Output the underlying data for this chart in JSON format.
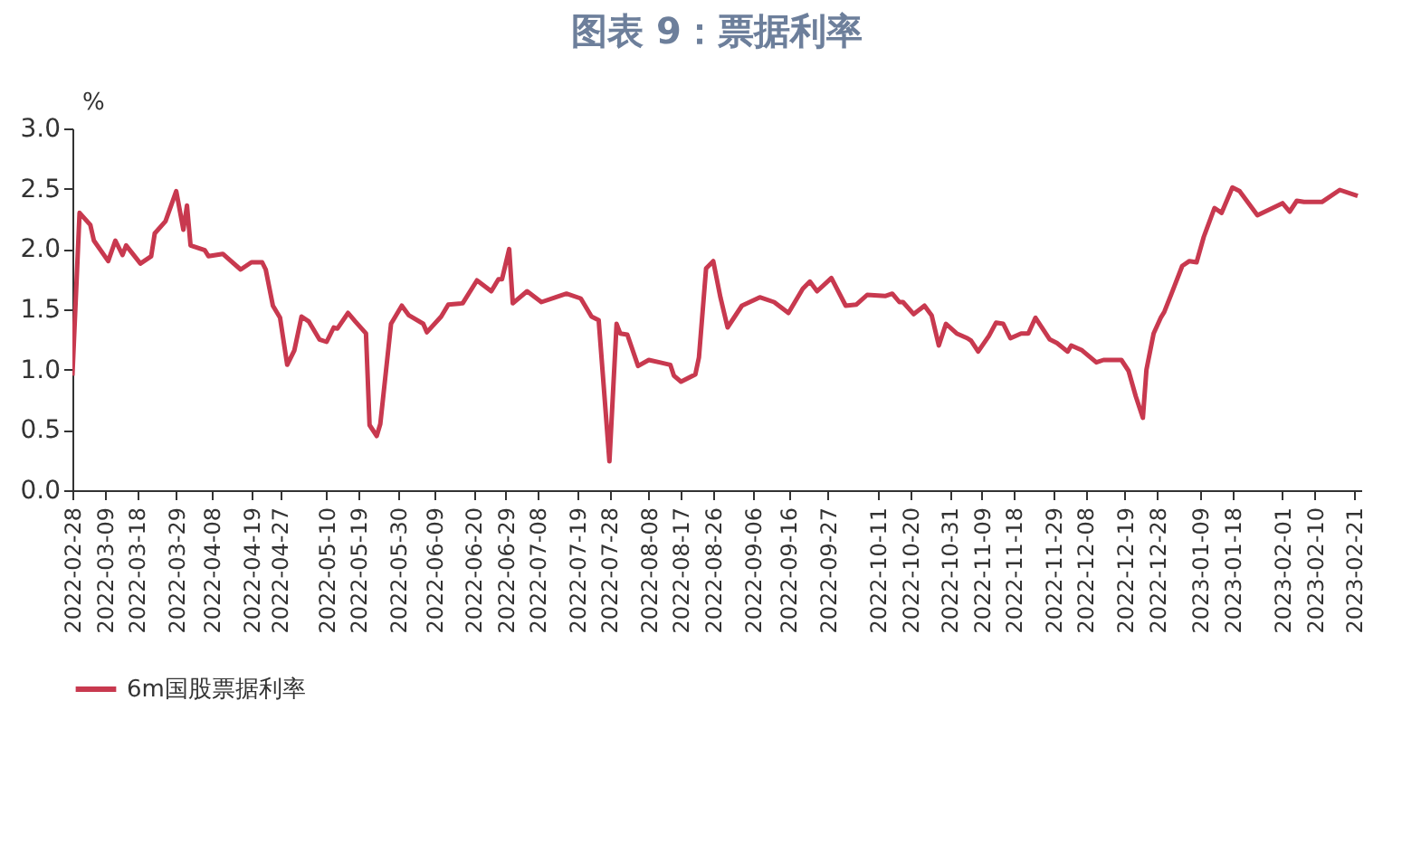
{
  "chart_data": {
    "type": "line",
    "title": "图表 9：票据利率",
    "ylabel": "%",
    "x": [
      "2022-02-28",
      "2022-03-02",
      "2022-03-05",
      "2022-03-06",
      "2022-03-10",
      "2022-03-12",
      "2022-03-14",
      "2022-03-15",
      "2022-03-19",
      "2022-03-22",
      "2022-03-23",
      "2022-03-26",
      "2022-03-29",
      "2022-03-31",
      "2022-04-01",
      "2022-04-02",
      "2022-04-06",
      "2022-04-07",
      "2022-04-11",
      "2022-04-16",
      "2022-04-19",
      "2022-04-22",
      "2022-04-23",
      "2022-04-25",
      "2022-04-27",
      "2022-04-29",
      "2022-05-01",
      "2022-05-03",
      "2022-05-05",
      "2022-05-08",
      "2022-05-10",
      "2022-05-12",
      "2022-05-13",
      "2022-05-16",
      "2022-05-18",
      "2022-05-21",
      "2022-05-22",
      "2022-05-24",
      "2022-05-25",
      "2022-05-28",
      "2022-05-31",
      "2022-06-02",
      "2022-06-06",
      "2022-06-07",
      "2022-06-11",
      "2022-06-13",
      "2022-06-17",
      "2022-06-21",
      "2022-06-25",
      "2022-06-27",
      "2022-06-28",
      "2022-06-30",
      "2022-07-01",
      "2022-07-05",
      "2022-07-09",
      "2022-07-13",
      "2022-07-16",
      "2022-07-20",
      "2022-07-23",
      "2022-07-25",
      "2022-07-28",
      "2022-07-30",
      "2022-07-31",
      "2022-08-02",
      "2022-08-05",
      "2022-08-08",
      "2022-08-11",
      "2022-08-14",
      "2022-08-15",
      "2022-08-17",
      "2022-08-21",
      "2022-08-22",
      "2022-08-24",
      "2022-08-26",
      "2022-08-28",
      "2022-08-30",
      "2022-09-03",
      "2022-09-08",
      "2022-09-12",
      "2022-09-16",
      "2022-09-20",
      "2022-09-22",
      "2022-09-24",
      "2022-09-28",
      "2022-10-02",
      "2022-10-05",
      "2022-10-08",
      "2022-10-13",
      "2022-10-15",
      "2022-10-17",
      "2022-10-18",
      "2022-10-21",
      "2022-10-24",
      "2022-10-26",
      "2022-10-28",
      "2022-10-30",
      "2022-11-02",
      "2022-11-05",
      "2022-11-06",
      "2022-11-08",
      "2022-11-11",
      "2022-11-13",
      "2022-11-15",
      "2022-11-17",
      "2022-11-20",
      "2022-11-22",
      "2022-11-24",
      "2022-11-28",
      "2022-11-30",
      "2022-12-03",
      "2022-12-04",
      "2022-12-07",
      "2022-12-11",
      "2022-12-13",
      "2022-12-18",
      "2022-12-20",
      "2022-12-22",
      "2022-12-24",
      "2022-12-25",
      "2022-12-27",
      "2022-12-29",
      "2022-12-30",
      "2023-01-01",
      "2023-01-04",
      "2023-01-06",
      "2023-01-08",
      "2023-01-10",
      "2023-01-13",
      "2023-01-15",
      "2023-01-18",
      "2023-01-20",
      "2023-01-25",
      "2023-02-01",
      "2023-02-03",
      "2023-02-05",
      "2023-02-07",
      "2023-02-12",
      "2023-02-17",
      "2023-02-22"
    ],
    "series": [
      {
        "name": "6m国股票据利率",
        "color": "#c8394f",
        "values": [
          0.95,
          2.3,
          2.2,
          2.07,
          1.9,
          2.07,
          1.95,
          2.03,
          1.88,
          1.94,
          2.13,
          2.23,
          2.48,
          2.16,
          2.36,
          2.03,
          1.99,
          1.94,
          1.96,
          1.83,
          1.89,
          1.89,
          1.83,
          1.53,
          1.43,
          1.04,
          1.16,
          1.44,
          1.4,
          1.25,
          1.23,
          1.35,
          1.34,
          1.47,
          1.4,
          1.3,
          0.54,
          0.45,
          0.55,
          1.38,
          1.53,
          1.45,
          1.38,
          1.31,
          1.44,
          1.54,
          1.55,
          1.74,
          1.65,
          1.75,
          1.75,
          2.0,
          1.55,
          1.65,
          1.56,
          1.6,
          1.63,
          1.59,
          1.44,
          1.41,
          0.24,
          1.38,
          1.3,
          1.29,
          1.03,
          1.08,
          1.06,
          1.04,
          0.95,
          0.9,
          0.96,
          1.1,
          1.84,
          1.9,
          1.6,
          1.35,
          1.53,
          1.6,
          1.56,
          1.47,
          1.67,
          1.73,
          1.65,
          1.76,
          1.53,
          1.54,
          1.62,
          1.61,
          1.63,
          1.56,
          1.56,
          1.46,
          1.53,
          1.45,
          1.2,
          1.38,
          1.3,
          1.26,
          1.24,
          1.15,
          1.28,
          1.39,
          1.38,
          1.26,
          1.3,
          1.3,
          1.43,
          1.25,
          1.22,
          1.15,
          1.2,
          1.16,
          1.06,
          1.08,
          1.08,
          0.99,
          0.78,
          0.6,
          1.0,
          1.3,
          1.43,
          1.48,
          1.63,
          1.86,
          1.9,
          1.89,
          2.1,
          2.34,
          2.3,
          2.51,
          2.48,
          2.28,
          2.38,
          2.31,
          2.4,
          2.39,
          2.39,
          2.49,
          2.44
        ]
      }
    ],
    "xlim": [
      "2022-02-28",
      "2023-02-23"
    ],
    "xticks": [
      "2022-02-28",
      "2022-03-09",
      "2022-03-18",
      "2022-03-29",
      "2022-04-08",
      "2022-04-19",
      "2022-04-27",
      "2022-05-10",
      "2022-05-19",
      "2022-05-30",
      "2022-06-09",
      "2022-06-20",
      "2022-06-29",
      "2022-07-08",
      "2022-07-19",
      "2022-07-28",
      "2022-08-08",
      "2022-08-17",
      "2022-08-26",
      "2022-09-06",
      "2022-09-16",
      "2022-09-27",
      "2022-10-11",
      "2022-10-20",
      "2022-10-31",
      "2022-11-09",
      "2022-11-18",
      "2022-11-29",
      "2022-12-08",
      "2022-12-19",
      "2022-12-28",
      "2023-01-09",
      "2023-01-18",
      "2023-02-01",
      "2023-02-10",
      "2023-02-21"
    ],
    "ylim": [
      0,
      3
    ],
    "yticks": [
      {
        "value": 0,
        "label": "0.0"
      },
      {
        "value": 0.5,
        "label": "0.5"
      },
      {
        "value": 1,
        "label": "1.0"
      },
      {
        "value": 1.5,
        "label": "1.5"
      },
      {
        "value": 2,
        "label": "2.0"
      },
      {
        "value": 2.5,
        "label": "2.5"
      },
      {
        "value": 3,
        "label": "3.0"
      }
    ],
    "grid": false,
    "legend": "bottom",
    "marker": "none",
    "line_style": "solid"
  }
}
